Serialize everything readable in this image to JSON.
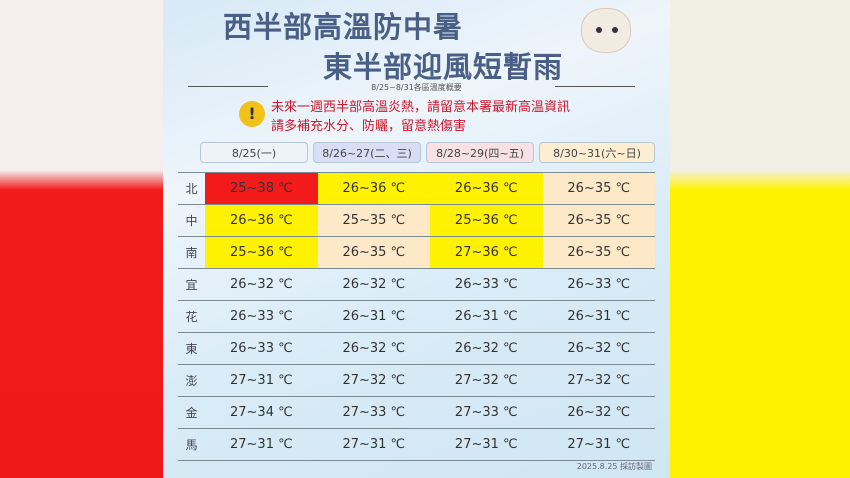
{
  "title_line1": "西半部高溫防中暑",
  "title_line2": "東半部迎風短暫雨",
  "subtitle": "8/25~8/31各區溫度概要",
  "warning": {
    "icon": "exclamation-icon",
    "line1": "未來一週西半部高溫炎熱，請留意本署最新高溫資訊",
    "line2": "請多補充水分、防曬，留意熱傷害"
  },
  "columns": [
    "8/25(一)",
    "8/26~27(二、三)",
    "8/28~29(四~五)",
    "8/30~31(六~日)"
  ],
  "colors": {
    "hot": "#f21a1a",
    "warm": "#fff200",
    "mild": "#fde9c8"
  },
  "rows": [
    {
      "region": "北",
      "values": [
        "25~38 ℃",
        "26~36 ℃",
        "26~36 ℃",
        "26~35 ℃"
      ],
      "levels": [
        "hot",
        "warm",
        "warm",
        "mild"
      ]
    },
    {
      "region": "中",
      "values": [
        "26~36 ℃",
        "25~35 ℃",
        "25~36 ℃",
        "26~35 ℃"
      ],
      "levels": [
        "warm",
        "mild",
        "warm",
        "mild"
      ]
    },
    {
      "region": "南",
      "values": [
        "25~36 ℃",
        "26~35 ℃",
        "27~36 ℃",
        "26~35 ℃"
      ],
      "levels": [
        "warm",
        "mild",
        "warm",
        "mild"
      ]
    },
    {
      "region": "宜",
      "values": [
        "26~32 ℃",
        "26~32 ℃",
        "26~33 ℃",
        "26~33 ℃"
      ],
      "levels": [
        "",
        "",
        "",
        ""
      ]
    },
    {
      "region": "花",
      "values": [
        "26~33 ℃",
        "26~31 ℃",
        "26~31 ℃",
        "26~31 ℃"
      ],
      "levels": [
        "",
        "",
        "",
        ""
      ]
    },
    {
      "region": "東",
      "values": [
        "26~33 ℃",
        "26~32 ℃",
        "26~32 ℃",
        "26~32 ℃"
      ],
      "levels": [
        "",
        "",
        "",
        ""
      ]
    },
    {
      "region": "澎",
      "values": [
        "27~31 ℃",
        "27~32 ℃",
        "27~32 ℃",
        "27~32 ℃"
      ],
      "levels": [
        "",
        "",
        "",
        ""
      ]
    },
    {
      "region": "金",
      "values": [
        "27~34 ℃",
        "27~33 ℃",
        "27~33 ℃",
        "26~32 ℃"
      ],
      "levels": [
        "",
        "",
        "",
        ""
      ]
    },
    {
      "region": "馬",
      "values": [
        "27~31 ℃",
        "27~31 ℃",
        "27~31 ℃",
        "27~31 ℃"
      ],
      "levels": [
        "",
        "",
        "",
        ""
      ]
    }
  ],
  "footer": "2025.8.25 採訪製圖"
}
